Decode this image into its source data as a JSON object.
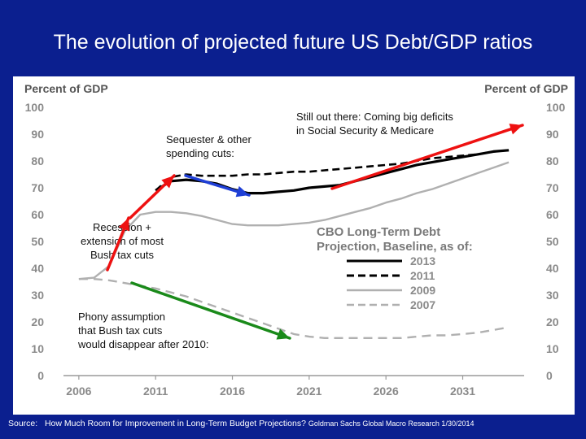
{
  "slide": {
    "title": "The evolution of projected future US Debt/GDP ratios",
    "source_label": "Source:",
    "source_title": "How Much Room for Improvement in Long-Term Budget Projections?",
    "source_publisher": "Goldman Sachs Global Macro Research 1/30/2014"
  },
  "chart_data": {
    "type": "line",
    "ylabel_left": "Percent of GDP",
    "ylabel_right": "Percent of GDP",
    "xlim": [
      2005,
      2035
    ],
    "ylim": [
      0,
      100
    ],
    "x_ticks": [
      2006,
      2011,
      2016,
      2021,
      2026,
      2031
    ],
    "y_ticks": [
      0,
      10,
      20,
      30,
      40,
      50,
      60,
      70,
      80,
      90,
      100
    ],
    "legend": {
      "title_line1": "CBO Long-Term Debt",
      "title_line2": "Projection, Baseline, as of:",
      "placement": "center-right"
    },
    "series": [
      {
        "name": "2013",
        "color": "#000000",
        "dash": "solid",
        "x": [
          2011,
          2012,
          2013,
          2014,
          2015,
          2016,
          2017,
          2018,
          2019,
          2020,
          2021,
          2022,
          2023,
          2024,
          2025,
          2026,
          2027,
          2028,
          2029,
          2030,
          2031,
          2032,
          2033,
          2034
        ],
        "y": [
          69,
          72.5,
          73,
          72.5,
          71.5,
          69.5,
          68,
          68,
          68.5,
          69,
          70,
          70.5,
          71,
          72.5,
          74,
          75.5,
          77,
          78.5,
          79.5,
          80.5,
          81.5,
          82.5,
          83.5,
          84
        ]
      },
      {
        "name": "2011",
        "color": "#000000",
        "dash": "dashed",
        "x": [
          2011,
          2012,
          2013,
          2014,
          2015,
          2016,
          2017,
          2018,
          2019,
          2020,
          2021,
          2022,
          2023,
          2024,
          2025,
          2026,
          2027,
          2028,
          2029,
          2030,
          2031,
          2032,
          2033,
          2034
        ],
        "y": [
          69,
          74,
          75,
          74.5,
          74.5,
          74.5,
          75,
          75,
          75.5,
          76,
          76,
          76.5,
          77,
          77.5,
          78,
          78.5,
          79,
          80,
          81,
          81.5,
          82,
          82.5,
          83.5,
          84
        ]
      },
      {
        "name": "2009",
        "color": "#b0b0b0",
        "dash": "solid",
        "x": [
          2006,
          2007,
          2008,
          2009,
          2010,
          2011,
          2012,
          2013,
          2014,
          2015,
          2016,
          2017,
          2018,
          2019,
          2020,
          2021,
          2022,
          2023,
          2024,
          2025,
          2026,
          2027,
          2028,
          2029,
          2030,
          2031,
          2032,
          2033,
          2034
        ],
        "y": [
          36,
          36.5,
          41,
          54,
          60,
          61,
          61,
          60.5,
          59.5,
          58,
          56.5,
          56,
          56,
          56,
          56.5,
          57,
          58,
          59.5,
          61,
          62.5,
          64.5,
          66,
          68,
          69.5,
          71.5,
          73.5,
          75.5,
          77.5,
          79.5
        ]
      },
      {
        "name": "2007",
        "color": "#b0b0b0",
        "dash": "dashed",
        "x": [
          2006,
          2007,
          2008,
          2009,
          2010,
          2011,
          2012,
          2013,
          2014,
          2015,
          2016,
          2017,
          2018,
          2019,
          2020,
          2021,
          2022,
          2023,
          2024,
          2025,
          2026,
          2027,
          2028,
          2029,
          2030,
          2031,
          2032,
          2033,
          2034
        ],
        "y": [
          36,
          36,
          35.5,
          34.5,
          33.5,
          32.5,
          31,
          29.5,
          27.5,
          25.5,
          23.5,
          21.5,
          19.5,
          17.5,
          15.5,
          14.5,
          14,
          14,
          14,
          14,
          14,
          14,
          14.5,
          15,
          15,
          15.5,
          16,
          17,
          18
        ]
      }
    ],
    "annotations": [
      {
        "id": "recession",
        "lines": [
          "Recession +",
          "extension of most",
          "Bush tax cuts"
        ]
      },
      {
        "id": "sequester",
        "lines": [
          "Sequester & other",
          "spending cuts:"
        ]
      },
      {
        "id": "still-out-there",
        "lines": [
          "Still out there: Coming big deficits",
          "in Social Security & Medicare"
        ]
      },
      {
        "id": "phony",
        "lines": [
          "Phony assumption",
          "that Bush tax cuts",
          "would disappear after 2010:"
        ]
      }
    ],
    "arrow_colors": {
      "red": "#ee1111",
      "blue": "#1f3fd6",
      "green": "#1a8a1a"
    }
  }
}
